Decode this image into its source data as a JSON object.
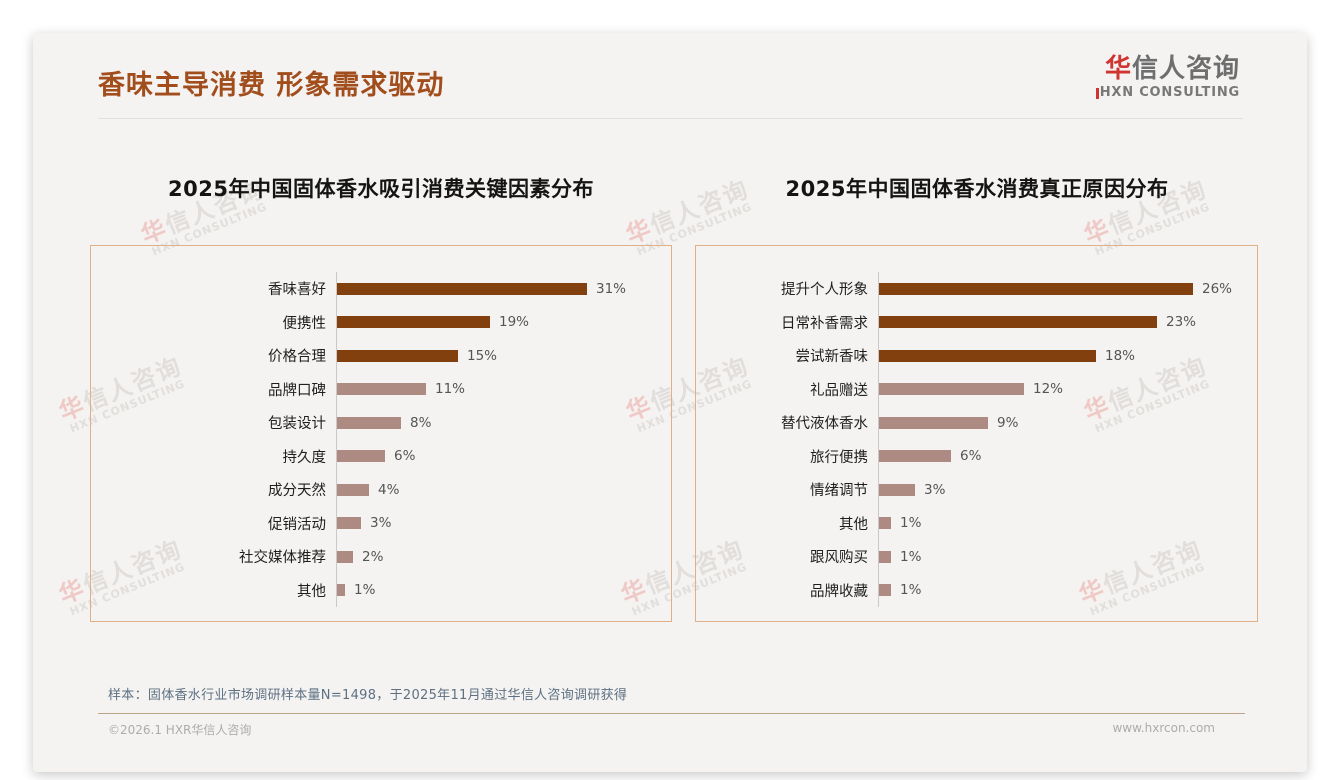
{
  "header": {
    "title": "香味主导消费 形象需求驱动",
    "logo_cn_first": "华",
    "logo_cn_rest": "信人咨询",
    "logo_en": "HXN CONSULTING"
  },
  "watermark": {
    "cn_first": "华",
    "cn_rest": "信人咨询",
    "en": "HXN CONSULTING"
  },
  "footnote": "样本：固体香水行业市场调研样本量N=1498，于2025年11月通过华信人咨询调研获得",
  "footer": {
    "copyright": "©2026.1 HXR华信人咨询",
    "website": "www.hxrcon.com"
  },
  "colors": {
    "title_brown": "#a24d1c",
    "bar_dark": "#82400f",
    "bar_light": "#ad8b83",
    "panel_border": "#e0b088",
    "logo_red": "#cf3430"
  },
  "chart_data": [
    {
      "type": "bar",
      "orientation": "horizontal",
      "title": "2025年中国固体香水吸引消费关键因素分布",
      "categories": [
        "香味喜好",
        "便携性",
        "价格合理",
        "品牌口碑",
        "包装设计",
        "持久度",
        "成分天然",
        "促销活动",
        "社交媒体推荐",
        "其他"
      ],
      "values": [
        31,
        19,
        15,
        11,
        8,
        6,
        4,
        3,
        2,
        1
      ],
      "unit": "%",
      "emphasized_count": 3,
      "xlim": [
        0,
        35
      ],
      "grid": false,
      "legend": false,
      "value_labels": true
    },
    {
      "type": "bar",
      "orientation": "horizontal",
      "title": "2025年中国固体香水消费真正原因分布",
      "categories": [
        "提升个人形象",
        "日常补香需求",
        "尝试新香味",
        "礼品赠送",
        "替代液体香水",
        "旅行便携",
        "情绪调节",
        "其他",
        "跟风购买",
        "品牌收藏"
      ],
      "values": [
        26,
        23,
        18,
        12,
        9,
        6,
        3,
        1,
        1,
        1
      ],
      "unit": "%",
      "emphasized_count": 3,
      "xlim": [
        0,
        30
      ],
      "grid": false,
      "legend": false,
      "value_labels": true
    }
  ]
}
